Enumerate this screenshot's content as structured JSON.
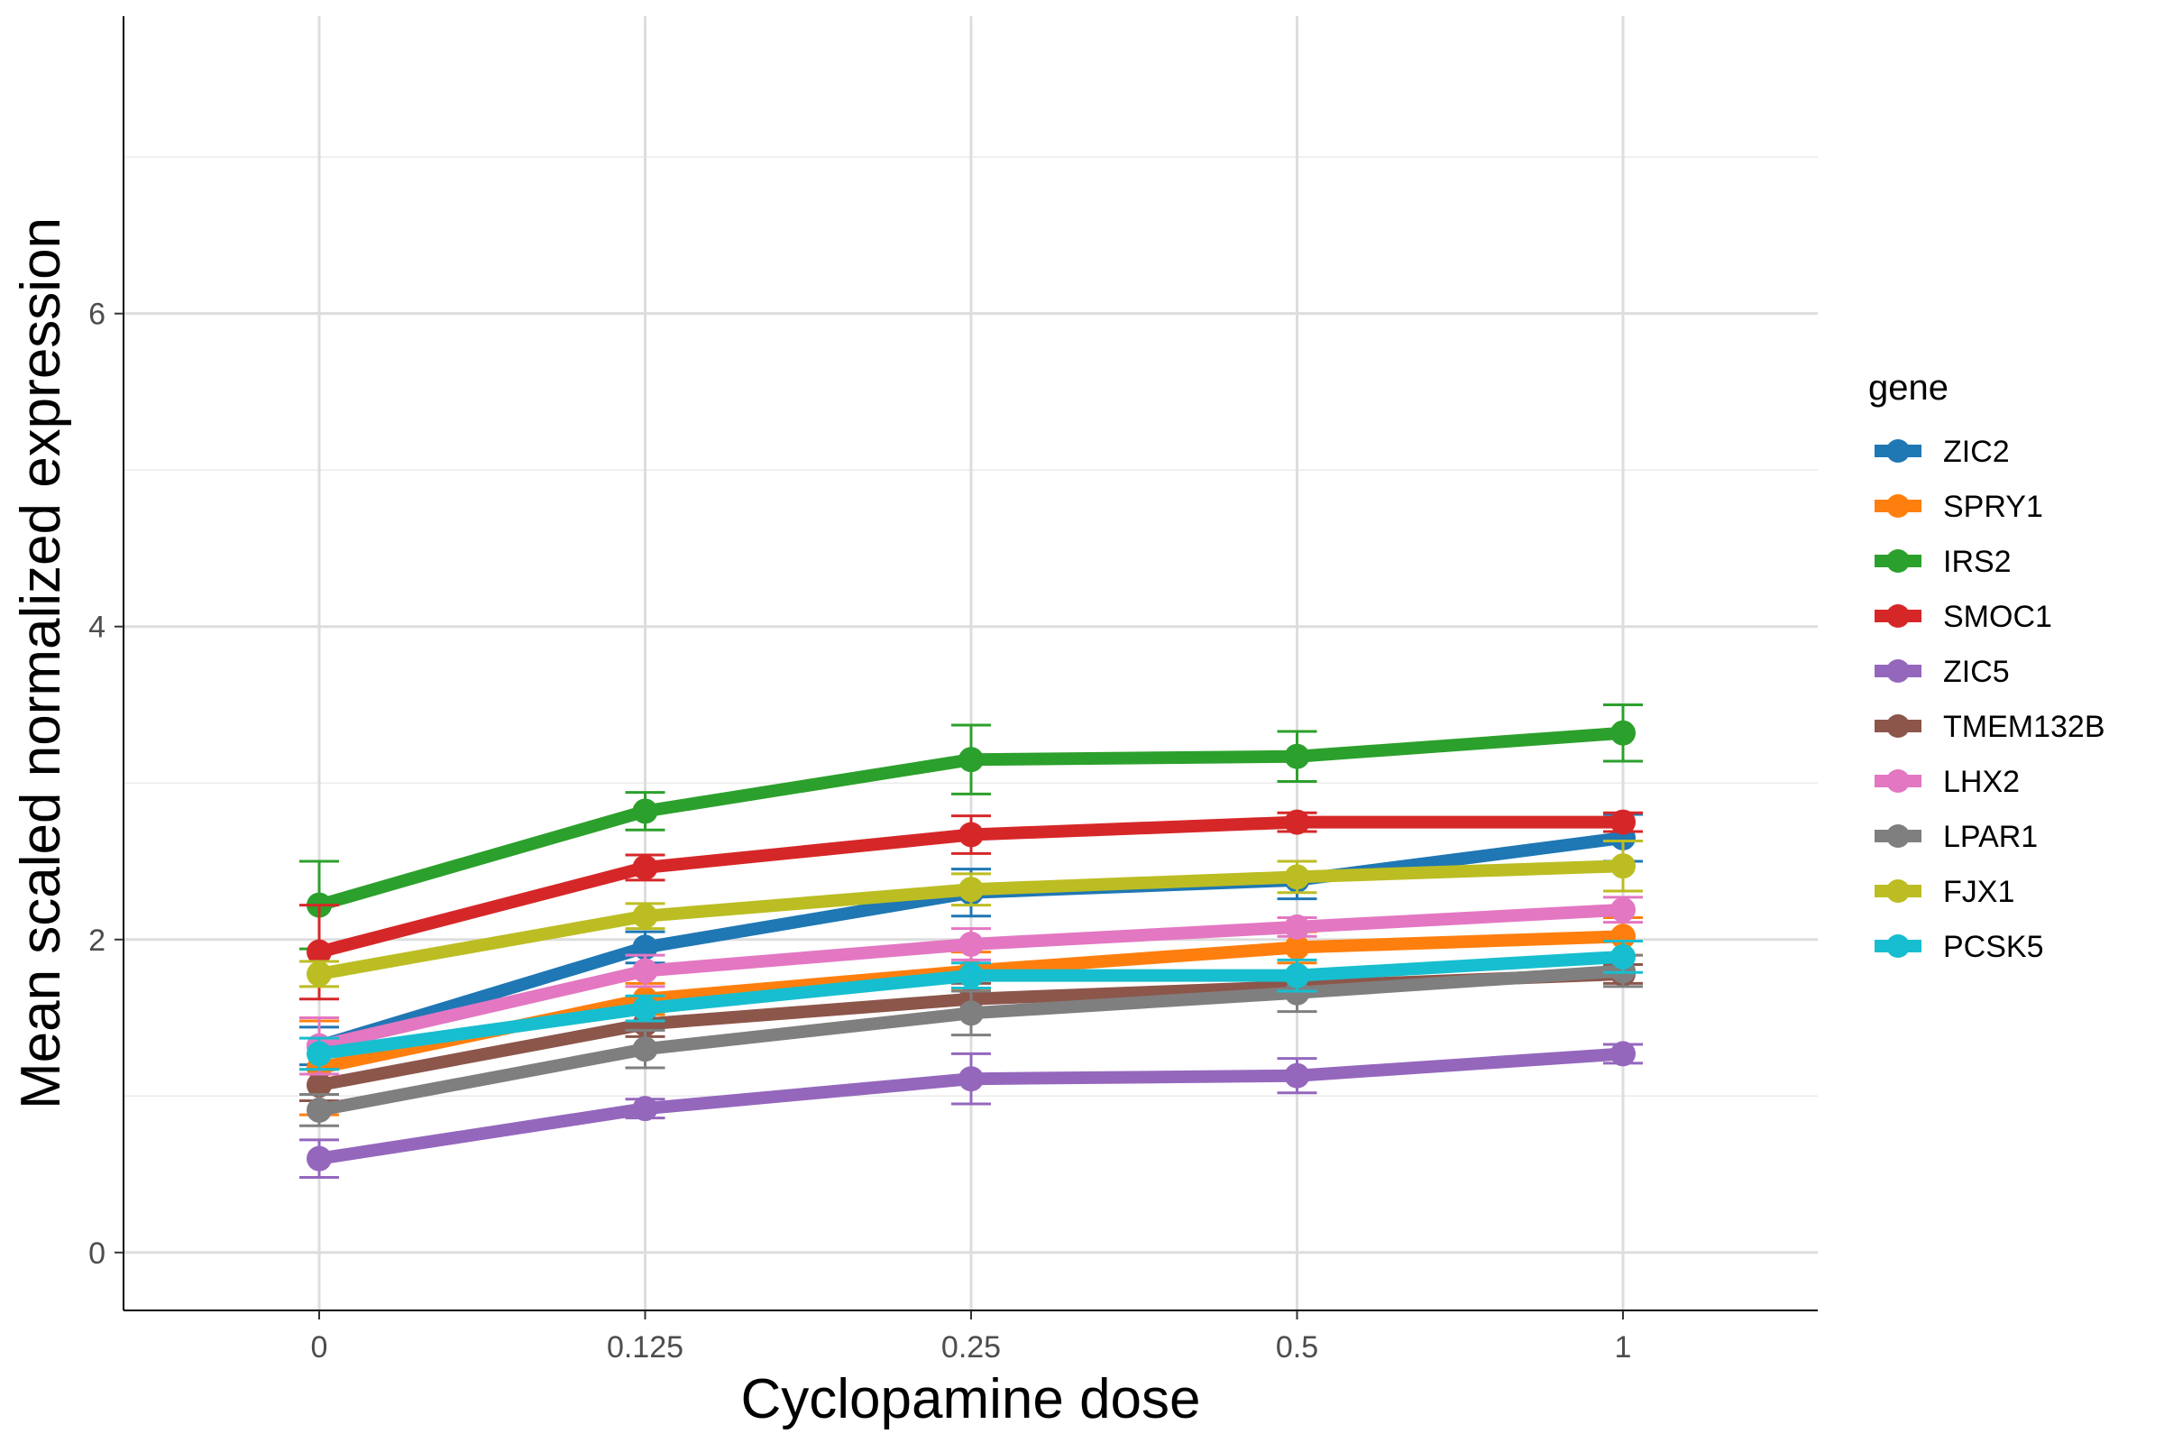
{
  "chart_data": {
    "type": "line",
    "xlabel": "Cyclopamine dose",
    "ylabel": "Mean scaled normalized expression",
    "categories": [
      "0",
      "0.125",
      "0.25",
      "0.5",
      "1"
    ],
    "yticks": [
      0,
      2,
      4,
      6
    ],
    "ylim": [
      -0.37,
      7.9
    ],
    "grid": true,
    "legend": {
      "title": "gene",
      "position": "right"
    },
    "series": [
      {
        "name": "ZIC2",
        "color": "#1f77b4",
        "values": [
          1.32,
          1.95,
          2.3,
          2.38,
          2.65
        ],
        "err": [
          0.12,
          0.1,
          0.15,
          0.12,
          0.15
        ]
      },
      {
        "name": "SPRY1",
        "color": "#ff7f0e",
        "values": [
          1.18,
          1.62,
          1.8,
          1.95,
          2.02
        ],
        "err": [
          0.3,
          0.1,
          0.12,
          0.1,
          0.12
        ]
      },
      {
        "name": "IRS2",
        "color": "#2ca02c",
        "values": [
          2.22,
          2.82,
          3.15,
          3.17,
          3.32
        ],
        "err": [
          0.28,
          0.12,
          0.22,
          0.16,
          0.18
        ]
      },
      {
        "name": "SMOC1",
        "color": "#d62728",
        "values": [
          1.92,
          2.46,
          2.67,
          2.75,
          2.75
        ],
        "err": [
          0.3,
          0.08,
          0.12,
          0.06,
          0.06
        ]
      },
      {
        "name": "ZIC5",
        "color": "#9467bd",
        "values": [
          0.6,
          0.92,
          1.11,
          1.13,
          1.27
        ],
        "err": [
          0.12,
          0.06,
          0.16,
          0.11,
          0.06
        ]
      },
      {
        "name": "TMEM132B",
        "color": "#8c564b",
        "values": [
          1.07,
          1.46,
          1.62,
          1.7,
          1.78
        ],
        "err": [
          0.1,
          0.08,
          0.1,
          0.06,
          0.06
        ]
      },
      {
        "name": "LHX2",
        "color": "#e377c2",
        "values": [
          1.32,
          1.8,
          1.97,
          2.08,
          2.19
        ],
        "err": [
          0.18,
          0.1,
          0.1,
          0.06,
          0.08
        ]
      },
      {
        "name": "LPAR1",
        "color": "#7f7f7f",
        "values": [
          0.91,
          1.3,
          1.53,
          1.66,
          1.8
        ],
        "err": [
          0.1,
          0.12,
          0.14,
          0.12,
          0.1
        ]
      },
      {
        "name": "FJX1",
        "color": "#bcbd22",
        "values": [
          1.78,
          2.15,
          2.32,
          2.4,
          2.47
        ],
        "err": [
          0.08,
          0.08,
          0.1,
          0.1,
          0.16
        ]
      },
      {
        "name": "PCSK5",
        "color": "#17becf",
        "values": [
          1.27,
          1.56,
          1.77,
          1.77,
          1.89
        ],
        "err": [
          0.1,
          0.08,
          0.08,
          0.1,
          0.1
        ]
      }
    ]
  }
}
